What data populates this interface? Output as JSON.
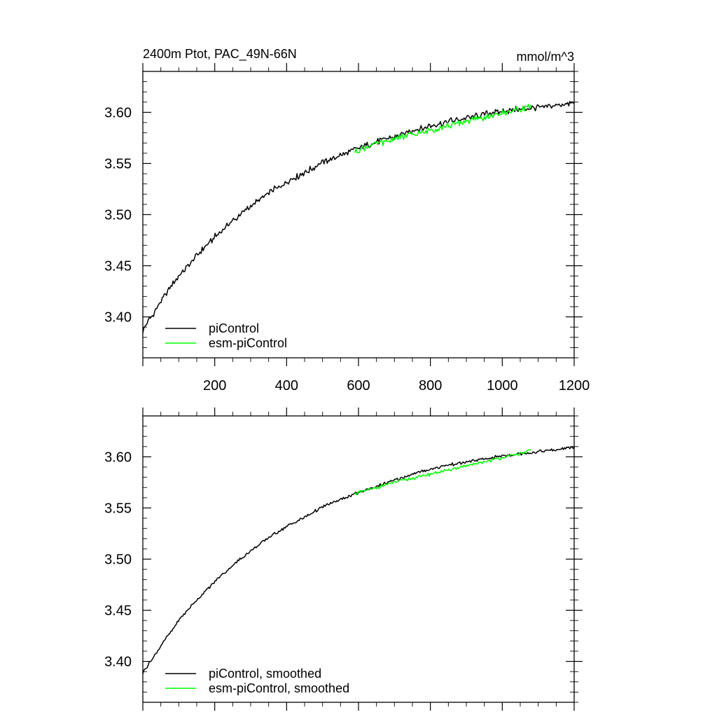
{
  "chart_data": [
    {
      "type": "line",
      "title": "2400m Ptot, PAC_49N-66N",
      "units": "mmol/m^3",
      "xlim": [
        0,
        1200
      ],
      "ylim": [
        3.36,
        3.64
      ],
      "x_ticks": [
        200,
        400,
        600,
        800,
        1000,
        1200
      ],
      "x_tick_labels": [
        "200",
        "400",
        "600",
        "800",
        "1000",
        "1200"
      ],
      "y_ticks": [
        3.4,
        3.45,
        3.5,
        3.55,
        3.6
      ],
      "y_tick_labels": [
        "3.40",
        "3.45",
        "3.50",
        "3.55",
        "3.60"
      ],
      "legend_position": "bottom-left",
      "series": [
        {
          "name": "piControl",
          "color": "#000000",
          "x": [
            0,
            50,
            100,
            150,
            200,
            250,
            300,
            350,
            400,
            450,
            500,
            550,
            600,
            650,
            700,
            750,
            800,
            850,
            900,
            950,
            1000,
            1050,
            1100,
            1150,
            1200
          ],
          "y": [
            3.387,
            3.415,
            3.44,
            3.46,
            3.478,
            3.494,
            3.508,
            3.521,
            3.532,
            3.541,
            3.551,
            3.558,
            3.565,
            3.571,
            3.576,
            3.582,
            3.587,
            3.591,
            3.594,
            3.598,
            3.601,
            3.603,
            3.605,
            3.607,
            3.609
          ]
        },
        {
          "name": "esm-piControl",
          "color": "#00ff00",
          "x": [
            590,
            650,
            700,
            750,
            800,
            850,
            900,
            950,
            1000,
            1050,
            1080
          ],
          "y": [
            3.562,
            3.569,
            3.574,
            3.578,
            3.582,
            3.587,
            3.591,
            3.595,
            3.599,
            3.603,
            3.607
          ]
        }
      ]
    },
    {
      "type": "line",
      "xlim": [
        0,
        1200
      ],
      "ylim": [
        3.36,
        3.64
      ],
      "y_ticks": [
        3.4,
        3.45,
        3.5,
        3.55,
        3.6
      ],
      "y_tick_labels": [
        "3.40",
        "3.45",
        "3.50",
        "3.55",
        "3.60"
      ],
      "legend_position": "bottom-left",
      "series": [
        {
          "name": "piControl, smoothed",
          "color": "#000000",
          "x": [
            0,
            50,
            100,
            150,
            200,
            250,
            300,
            350,
            400,
            450,
            500,
            550,
            600,
            650,
            700,
            750,
            800,
            850,
            900,
            950,
            1000,
            1050,
            1100,
            1150,
            1200
          ],
          "y": [
            3.389,
            3.415,
            3.44,
            3.46,
            3.478,
            3.494,
            3.508,
            3.521,
            3.532,
            3.541,
            3.551,
            3.558,
            3.565,
            3.571,
            3.577,
            3.583,
            3.588,
            3.592,
            3.595,
            3.598,
            3.601,
            3.603,
            3.605,
            3.607,
            3.609
          ]
        },
        {
          "name": "esm-piControl, smoothed",
          "color": "#00ff00",
          "x": [
            590,
            650,
            700,
            750,
            800,
            850,
            900,
            950,
            1000,
            1050,
            1080
          ],
          "y": [
            3.564,
            3.57,
            3.575,
            3.579,
            3.583,
            3.587,
            3.591,
            3.595,
            3.599,
            3.603,
            3.607
          ]
        }
      ]
    }
  ]
}
